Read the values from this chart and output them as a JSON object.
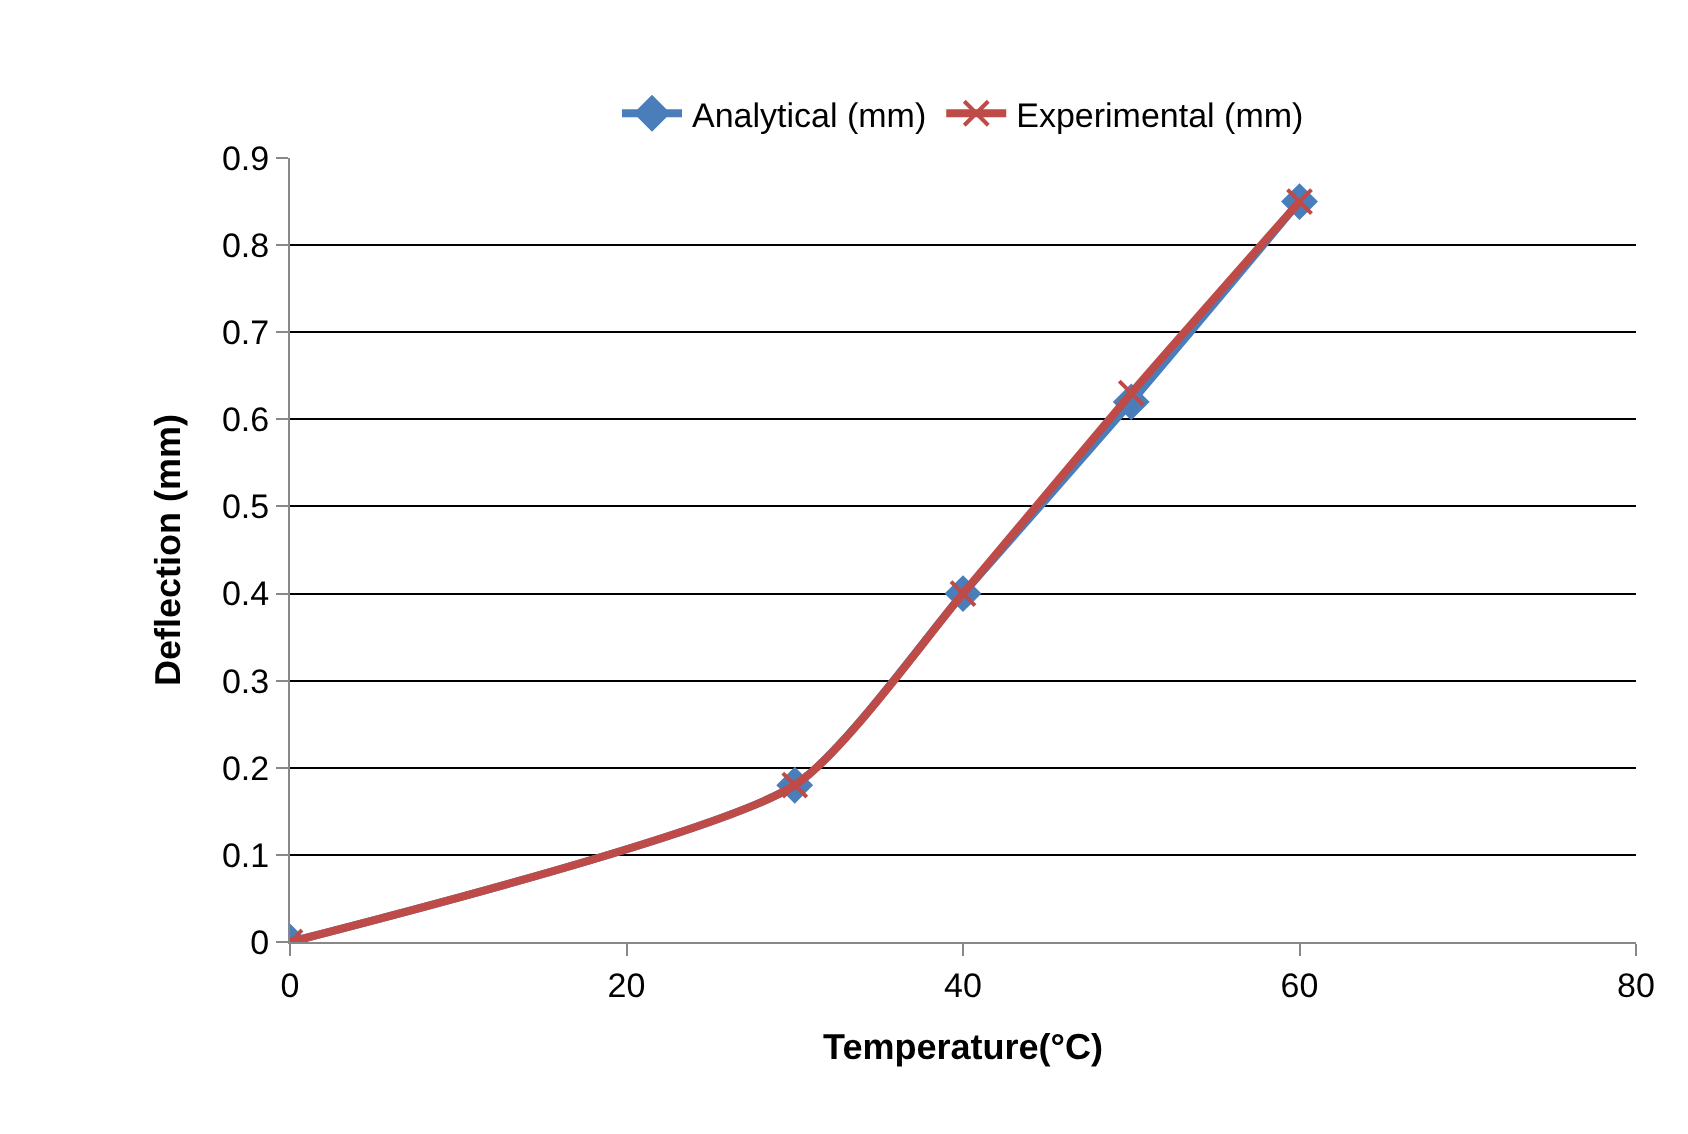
{
  "chart_data": {
    "type": "line",
    "xlabel": "Temperature(°C)",
    "ylabel": "Deflection (mm)",
    "x": [
      0,
      30,
      40,
      50,
      60
    ],
    "series": [
      {
        "name": "Analytical (mm)",
        "color": "#4a7ebb",
        "marker": "diamond",
        "values": [
          0,
          0.18,
          0.4,
          0.62,
          0.85
        ]
      },
      {
        "name": "Experimental (mm)",
        "color": "#be4b48",
        "marker": "cross",
        "values": [
          0,
          0.18,
          0.4,
          0.63,
          0.85
        ]
      }
    ],
    "xlim": [
      0,
      80
    ],
    "xticks": [
      0,
      20,
      40,
      60,
      80
    ],
    "ylim": [
      0,
      0.9
    ],
    "yticks": [
      0,
      0.1,
      0.2,
      0.3,
      0.4,
      0.5,
      0.6,
      0.7,
      0.8,
      0.9
    ],
    "grid": "y",
    "legend": "top",
    "line_style": "solid"
  }
}
